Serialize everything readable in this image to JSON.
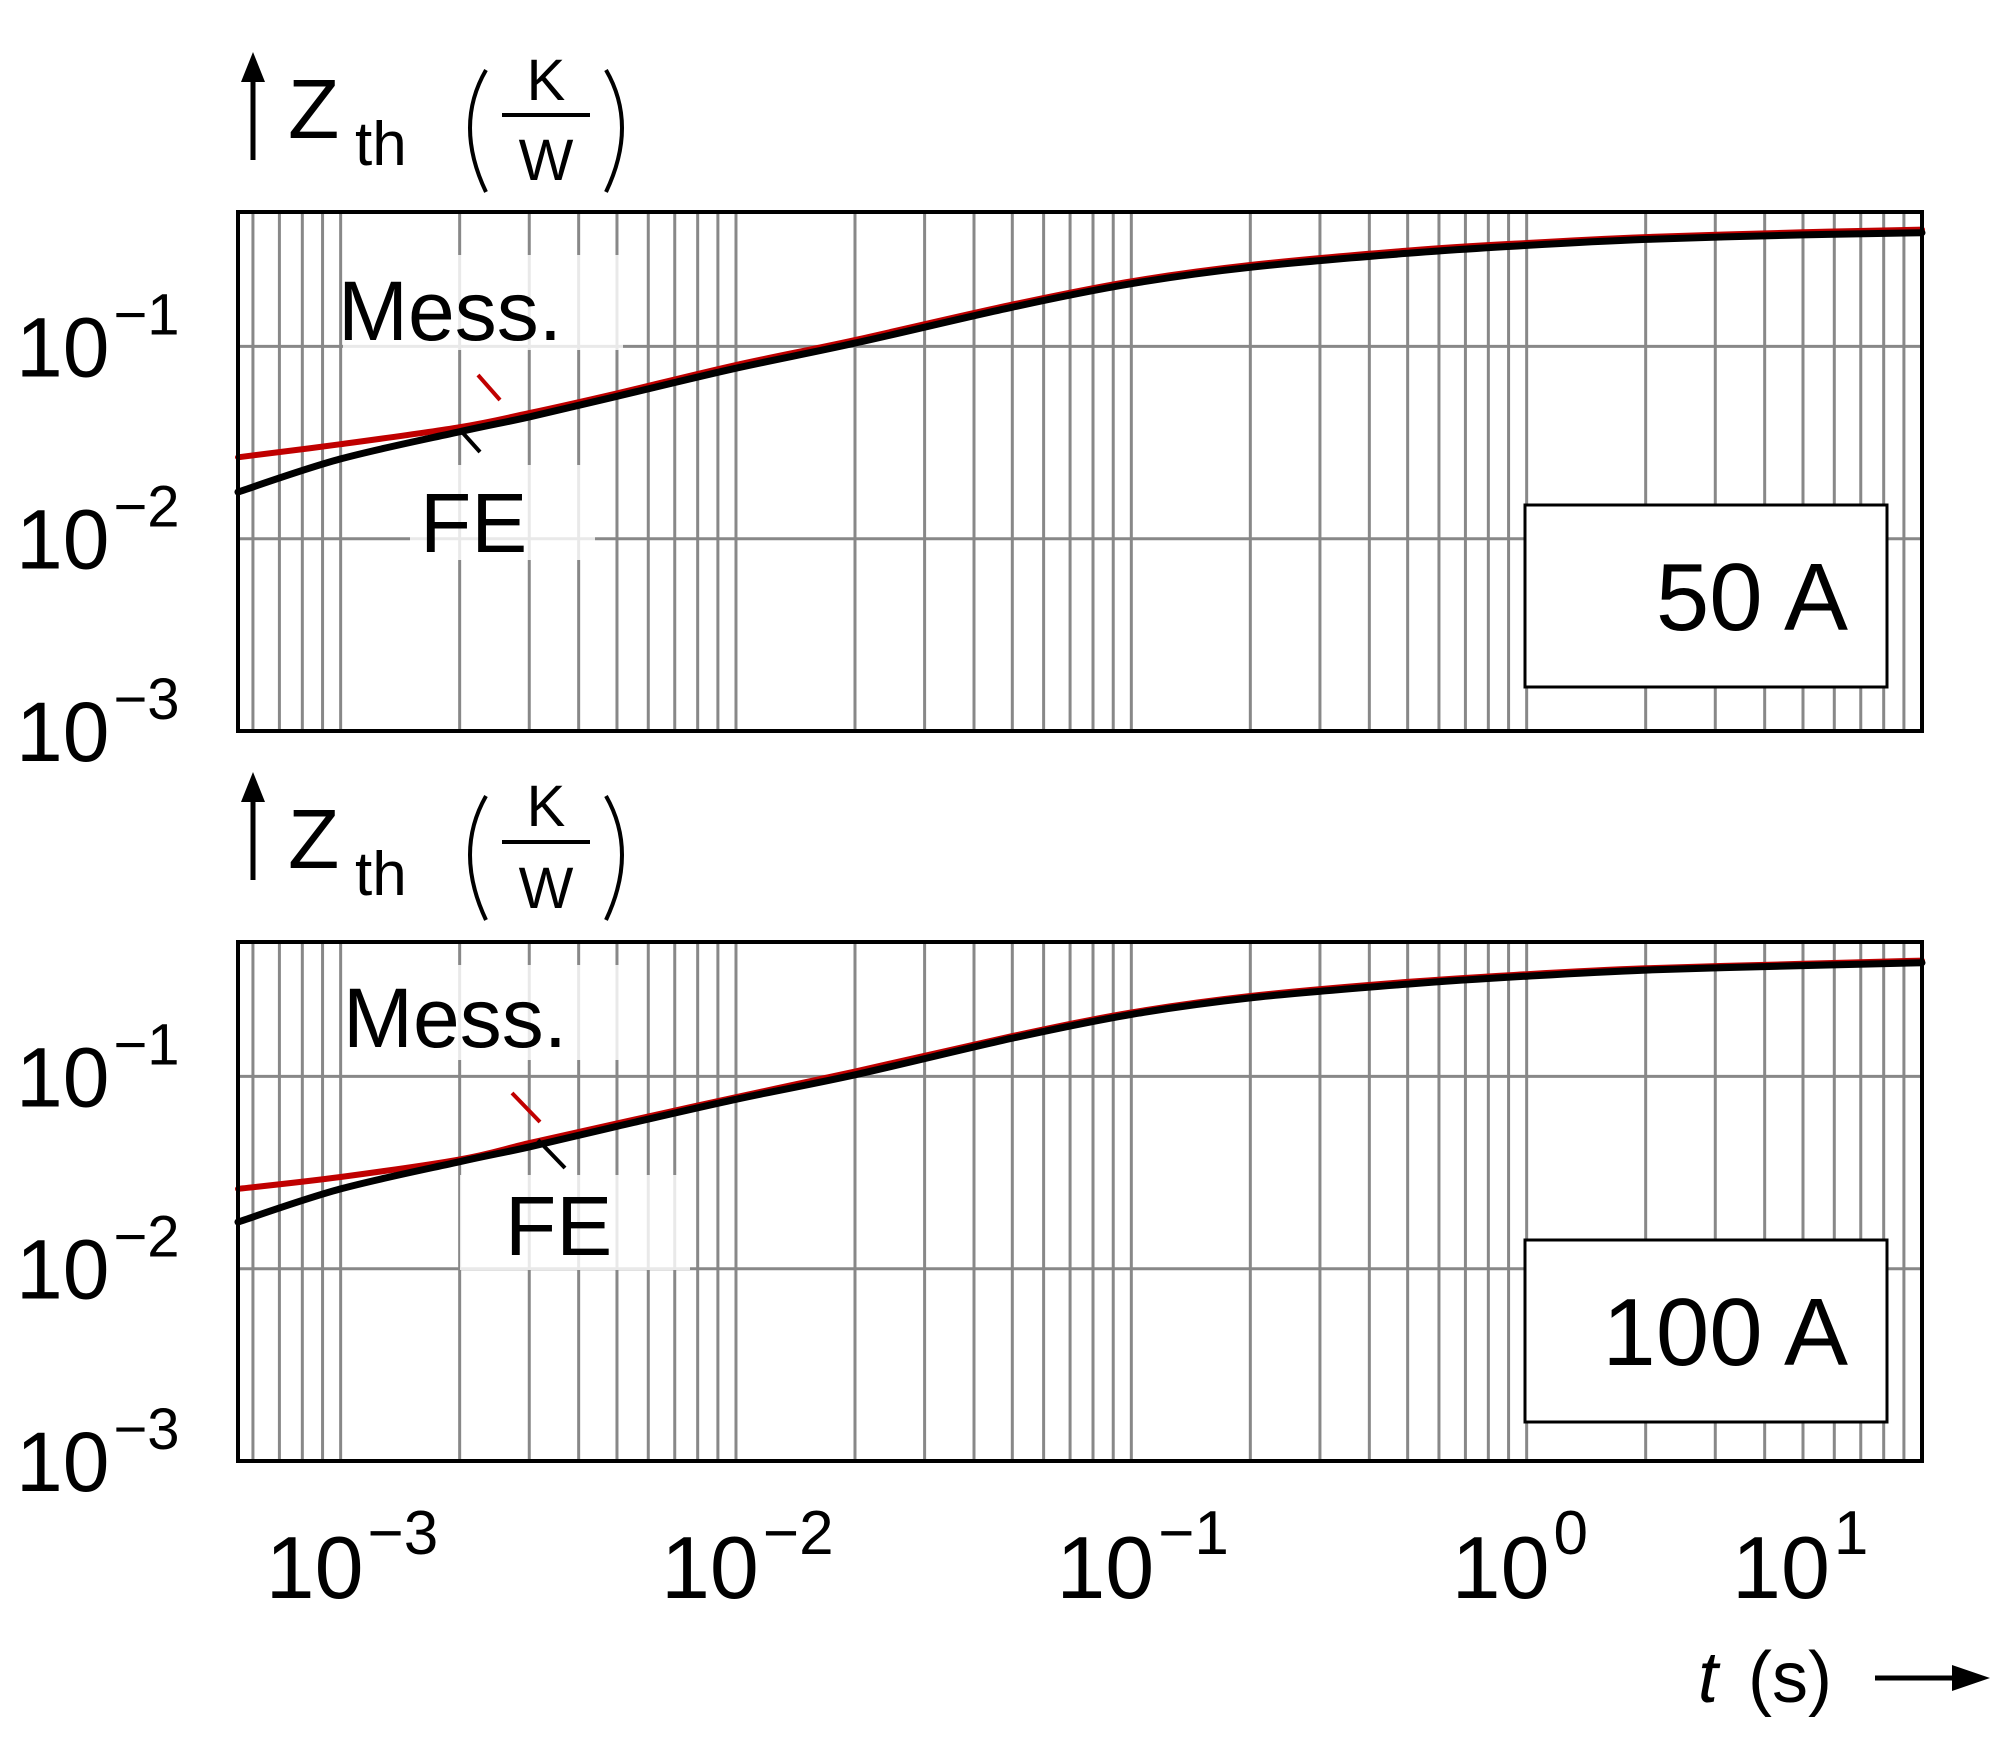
{
  "chart_data": [
    {
      "type": "line",
      "panel_label": "50 A",
      "ylabel": {
        "symbol": "Z",
        "subscript": "th",
        "unit_num": "K",
        "unit_den": "W"
      },
      "x_scale": "log",
      "y_scale": "log",
      "xlim": [
        0.00055,
        10
      ],
      "ylim": [
        0.001,
        0.5
      ],
      "grid": true,
      "y_ticks": [
        {
          "value": 0.1,
          "base": "10",
          "exp": "−1"
        },
        {
          "value": 0.01,
          "base": "10",
          "exp": "−2"
        },
        {
          "value": 0.001,
          "base": "10",
          "exp": "−3"
        }
      ],
      "annotations": [
        {
          "text": "Mess.",
          "series": "Mess."
        },
        {
          "text": "FE",
          "series": "FE"
        }
      ],
      "series": [
        {
          "name": "Mess.",
          "color": "#c00000",
          "x": [
            0.00055,
            0.001,
            0.002,
            0.003,
            0.005,
            0.01,
            0.02,
            0.05,
            0.1,
            0.2,
            0.5,
            1,
            2,
            5,
            10
          ],
          "y": [
            0.0265,
            0.031,
            0.038,
            0.045,
            0.057,
            0.08,
            0.108,
            0.165,
            0.218,
            0.265,
            0.315,
            0.345,
            0.37,
            0.392,
            0.405
          ]
        },
        {
          "name": "FE",
          "color": "#000000",
          "x": [
            0.00055,
            0.001,
            0.002,
            0.003,
            0.005,
            0.01,
            0.02,
            0.05,
            0.1,
            0.2,
            0.5,
            1,
            2,
            5,
            10
          ],
          "y": [
            0.0175,
            0.026,
            0.036,
            0.043,
            0.055,
            0.077,
            0.104,
            0.16,
            0.212,
            0.258,
            0.305,
            0.335,
            0.36,
            0.38,
            0.39
          ]
        }
      ]
    },
    {
      "type": "line",
      "panel_label": "100 A",
      "ylabel": {
        "symbol": "Z",
        "subscript": "th",
        "unit_num": "K",
        "unit_den": "W"
      },
      "x_scale": "log",
      "y_scale": "log",
      "xlim": [
        0.00055,
        10
      ],
      "ylim": [
        0.001,
        0.5
      ],
      "grid": true,
      "y_ticks": [
        {
          "value": 0.1,
          "base": "10",
          "exp": "−1"
        },
        {
          "value": 0.01,
          "base": "10",
          "exp": "−2"
        },
        {
          "value": 0.001,
          "base": "10",
          "exp": "−3"
        }
      ],
      "x_ticks": [
        {
          "value": 0.001,
          "base": "10",
          "exp": "−3"
        },
        {
          "value": 0.01,
          "base": "10",
          "exp": "−2"
        },
        {
          "value": 0.1,
          "base": "10",
          "exp": "−1"
        },
        {
          "value": 1,
          "base": "10",
          "exp": "0"
        },
        {
          "value": 10,
          "base": "10",
          "exp": "1"
        }
      ],
      "xlabel": {
        "symbol": "t",
        "unit": "(s)"
      },
      "annotations": [
        {
          "text": "Mess.",
          "series": "Mess."
        },
        {
          "text": "FE",
          "series": "FE"
        }
      ],
      "series": [
        {
          "name": "Mess.",
          "color": "#c00000",
          "x": [
            0.00055,
            0.001,
            0.002,
            0.003,
            0.005,
            0.01,
            0.02,
            0.05,
            0.1,
            0.2,
            0.5,
            1,
            2,
            5,
            10
          ],
          "y": [
            0.026,
            0.03,
            0.037,
            0.045,
            0.057,
            0.078,
            0.106,
            0.162,
            0.215,
            0.262,
            0.31,
            0.34,
            0.365,
            0.385,
            0.4
          ]
        },
        {
          "name": "FE",
          "color": "#000000",
          "x": [
            0.00055,
            0.001,
            0.002,
            0.003,
            0.005,
            0.01,
            0.02,
            0.05,
            0.1,
            0.2,
            0.5,
            1,
            2,
            5,
            10
          ],
          "y": [
            0.0175,
            0.026,
            0.036,
            0.043,
            0.055,
            0.076,
            0.102,
            0.158,
            0.21,
            0.256,
            0.302,
            0.332,
            0.357,
            0.377,
            0.39
          ]
        }
      ]
    }
  ]
}
